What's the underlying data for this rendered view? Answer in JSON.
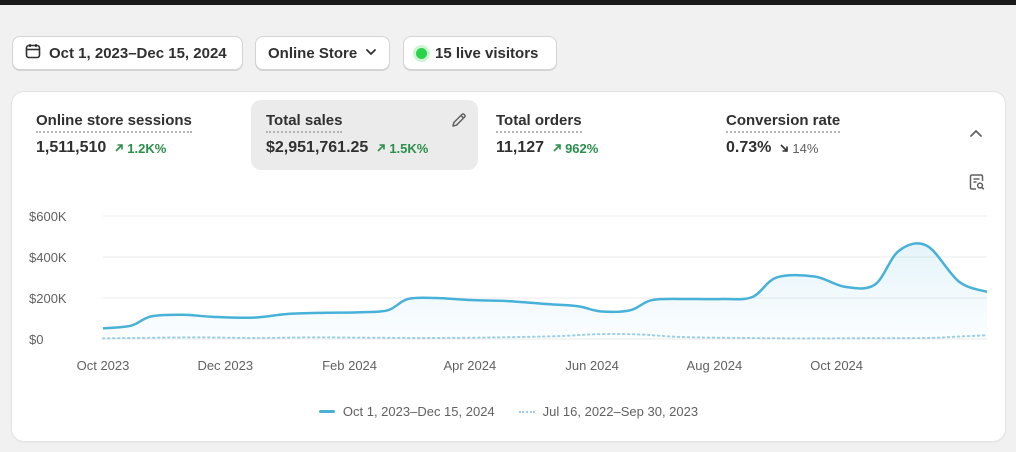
{
  "filters": {
    "date_range": "Oct 1, 2023–Dec 15, 2024",
    "channel": "Online Store",
    "live_visitors": "15 live visitors"
  },
  "metrics": [
    {
      "label": "Online store sessions",
      "value": "1,511,510",
      "delta": "1.2K%",
      "direction": "up"
    },
    {
      "label": "Total sales",
      "value": "$2,951,761.25",
      "delta": "1.5K%",
      "direction": "up"
    },
    {
      "label": "Total orders",
      "value": "11,127",
      "delta": "962%",
      "direction": "up"
    },
    {
      "label": "Conversion rate",
      "value": "0.73%",
      "delta": "14%",
      "direction": "down"
    }
  ],
  "colors": {
    "positive": "#2a8f4a",
    "current_series": "#47b1d8",
    "comparison_series": "#9fcfe6",
    "live_dot": "#29d449"
  },
  "chart_data": {
    "type": "area",
    "title": "",
    "xlabel": "",
    "ylabel": "",
    "ylim": [
      0,
      600000
    ],
    "y_ticks": [
      {
        "value": 600000,
        "label": "$600K"
      },
      {
        "value": 400000,
        "label": "$400K"
      },
      {
        "value": 200000,
        "label": "$200K"
      },
      {
        "value": 0,
        "label": "$0"
      }
    ],
    "x_ticks": [
      {
        "value": "2023-10-01",
        "label": "Oct 2023"
      },
      {
        "value": "2023-12-01",
        "label": "Dec 2023"
      },
      {
        "value": "2024-02-01",
        "label": "Feb 2024"
      },
      {
        "value": "2024-04-01",
        "label": "Apr 2024"
      },
      {
        "value": "2024-06-01",
        "label": "Jun 2024"
      },
      {
        "value": "2024-08-01",
        "label": "Aug 2024"
      },
      {
        "value": "2024-10-01",
        "label": "Oct 2024"
      }
    ],
    "grid": true,
    "legend": "bottom-center",
    "series": [
      {
        "name": "Oct 1, 2023–Dec 15, 2024",
        "style": "solid",
        "points": [
          [
            "2023-10-01",
            52000
          ],
          [
            "2023-10-15",
            65000
          ],
          [
            "2023-10-25",
            110000
          ],
          [
            "2023-11-10",
            118000
          ],
          [
            "2023-11-25",
            108000
          ],
          [
            "2023-12-15",
            104000
          ],
          [
            "2024-01-01",
            122000
          ],
          [
            "2024-01-20",
            128000
          ],
          [
            "2024-02-05",
            130000
          ],
          [
            "2024-02-20",
            140000
          ],
          [
            "2024-03-01",
            195000
          ],
          [
            "2024-03-15",
            200000
          ],
          [
            "2024-04-01",
            190000
          ],
          [
            "2024-04-20",
            185000
          ],
          [
            "2024-05-10",
            170000
          ],
          [
            "2024-05-25",
            160000
          ],
          [
            "2024-06-05",
            135000
          ],
          [
            "2024-06-20",
            140000
          ],
          [
            "2024-07-01",
            190000
          ],
          [
            "2024-07-20",
            195000
          ],
          [
            "2024-08-05",
            195000
          ],
          [
            "2024-08-20",
            205000
          ],
          [
            "2024-09-01",
            300000
          ],
          [
            "2024-09-20",
            305000
          ],
          [
            "2024-10-05",
            255000
          ],
          [
            "2024-10-20",
            265000
          ],
          [
            "2024-11-01",
            430000
          ],
          [
            "2024-11-15",
            455000
          ],
          [
            "2024-12-01",
            280000
          ],
          [
            "2024-12-15",
            230000
          ]
        ]
      },
      {
        "name": "Jul 16, 2022–Sep 30, 2023",
        "style": "dotted",
        "points": [
          [
            "2023-10-01",
            3000
          ],
          [
            "2023-11-15",
            8000
          ],
          [
            "2023-12-15",
            5000
          ],
          [
            "2024-01-15",
            8000
          ],
          [
            "2024-02-15",
            6000
          ],
          [
            "2024-03-15",
            5000
          ],
          [
            "2024-04-15",
            8000
          ],
          [
            "2024-05-15",
            14000
          ],
          [
            "2024-06-05",
            24000
          ],
          [
            "2024-06-25",
            22000
          ],
          [
            "2024-07-15",
            10000
          ],
          [
            "2024-08-15",
            5000
          ],
          [
            "2024-09-15",
            3000
          ],
          [
            "2024-10-15",
            4000
          ],
          [
            "2024-11-15",
            5000
          ],
          [
            "2024-12-01",
            12000
          ],
          [
            "2024-12-15",
            18000
          ]
        ]
      }
    ]
  }
}
